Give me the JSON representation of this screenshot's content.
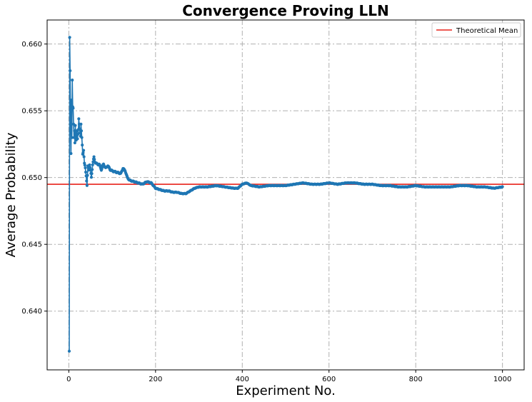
{
  "chart_data": {
    "type": "line",
    "title": "Convergence Proving LLN",
    "xlabel": "Experiment No.",
    "ylabel": "Average Probability",
    "xlim": [
      -50,
      1050
    ],
    "ylim": [
      0.6356,
      0.6618
    ],
    "xticks": [
      0,
      200,
      400,
      600,
      800,
      1000
    ],
    "yticks": [
      0.64,
      0.645,
      0.65,
      0.655,
      0.66
    ],
    "xtick_labels": [
      "0",
      "200",
      "400",
      "600",
      "800",
      "1000"
    ],
    "ytick_labels": [
      "0.640",
      "0.645",
      "0.650",
      "0.655",
      "0.660"
    ],
    "grid": true,
    "legend_position": "top-right",
    "colors": {
      "series": "#1f77b4",
      "mean": "#e8231c"
    },
    "series": [
      {
        "name": "",
        "style": "line-with-dot-markers",
        "anchors": [
          [
            1,
            0.637
          ],
          [
            2,
            0.6605
          ],
          [
            3,
            0.658
          ],
          [
            4,
            0.654
          ],
          [
            5,
            0.6518
          ],
          [
            6,
            0.6558
          ],
          [
            7,
            0.653
          ],
          [
            8,
            0.6573
          ],
          [
            9,
            0.6553
          ],
          [
            10,
            0.6552
          ],
          [
            11,
            0.654
          ],
          [
            12,
            0.653
          ],
          [
            13,
            0.6535
          ],
          [
            14,
            0.6526
          ],
          [
            15,
            0.6539
          ],
          [
            16,
            0.6533
          ],
          [
            17,
            0.6528
          ],
          [
            18,
            0.6535
          ],
          [
            20,
            0.6529
          ],
          [
            22,
            0.6536
          ],
          [
            23,
            0.6544
          ],
          [
            25,
            0.6536
          ],
          [
            27,
            0.6531
          ],
          [
            28,
            0.654
          ],
          [
            30,
            0.653
          ],
          [
            32,
            0.6518
          ],
          [
            34,
            0.6521
          ],
          [
            36,
            0.651
          ],
          [
            38,
            0.6507
          ],
          [
            40,
            0.6502
          ],
          [
            42,
            0.6494
          ],
          [
            44,
            0.6508
          ],
          [
            46,
            0.6506
          ],
          [
            48,
            0.651
          ],
          [
            50,
            0.6505
          ],
          [
            52,
            0.65
          ],
          [
            55,
            0.651
          ],
          [
            58,
            0.6515
          ],
          [
            60,
            0.6512
          ],
          [
            65,
            0.651
          ],
          [
            70,
            0.651
          ],
          [
            75,
            0.6506
          ],
          [
            80,
            0.651
          ],
          [
            85,
            0.6507
          ],
          [
            90,
            0.6509
          ],
          [
            95,
            0.6506
          ],
          [
            100,
            0.6505
          ],
          [
            110,
            0.6504
          ],
          [
            120,
            0.6503
          ],
          [
            125,
            0.6507
          ],
          [
            130,
            0.6505
          ],
          [
            135,
            0.65
          ],
          [
            140,
            0.6498
          ],
          [
            150,
            0.6497
          ],
          [
            160,
            0.6496
          ],
          [
            170,
            0.6495
          ],
          [
            180,
            0.6497
          ],
          [
            190,
            0.6496
          ],
          [
            200,
            0.6492
          ],
          [
            210,
            0.6491
          ],
          [
            220,
            0.649
          ],
          [
            230,
            0.649
          ],
          [
            240,
            0.6489
          ],
          [
            250,
            0.6489
          ],
          [
            260,
            0.6488
          ],
          [
            270,
            0.6488
          ],
          [
            280,
            0.649
          ],
          [
            290,
            0.6492
          ],
          [
            300,
            0.6493
          ],
          [
            320,
            0.6493
          ],
          [
            340,
            0.6494
          ],
          [
            360,
            0.6493
          ],
          [
            380,
            0.6492
          ],
          [
            390,
            0.6492
          ],
          [
            400,
            0.6495
          ],
          [
            410,
            0.6496
          ],
          [
            420,
            0.6494
          ],
          [
            440,
            0.6493
          ],
          [
            460,
            0.6494
          ],
          [
            480,
            0.6494
          ],
          [
            500,
            0.6494
          ],
          [
            520,
            0.6495
          ],
          [
            540,
            0.6496
          ],
          [
            560,
            0.6495
          ],
          [
            580,
            0.6495
          ],
          [
            600,
            0.6496
          ],
          [
            620,
            0.6495
          ],
          [
            640,
            0.6496
          ],
          [
            660,
            0.6496
          ],
          [
            680,
            0.6495
          ],
          [
            700,
            0.6495
          ],
          [
            720,
            0.6494
          ],
          [
            740,
            0.6494
          ],
          [
            760,
            0.6493
          ],
          [
            780,
            0.6493
          ],
          [
            800,
            0.6494
          ],
          [
            820,
            0.6493
          ],
          [
            840,
            0.6493
          ],
          [
            860,
            0.6493
          ],
          [
            880,
            0.6493
          ],
          [
            900,
            0.6494
          ],
          [
            920,
            0.6494
          ],
          [
            940,
            0.6493
          ],
          [
            960,
            0.6493
          ],
          [
            980,
            0.6492
          ],
          [
            1000,
            0.6493
          ]
        ]
      }
    ],
    "reference_lines": [
      {
        "name": "Theoretical Mean",
        "y": 0.6495,
        "color": "#e8231c"
      }
    ],
    "legend_entries": [
      "Theoretical Mean"
    ]
  }
}
